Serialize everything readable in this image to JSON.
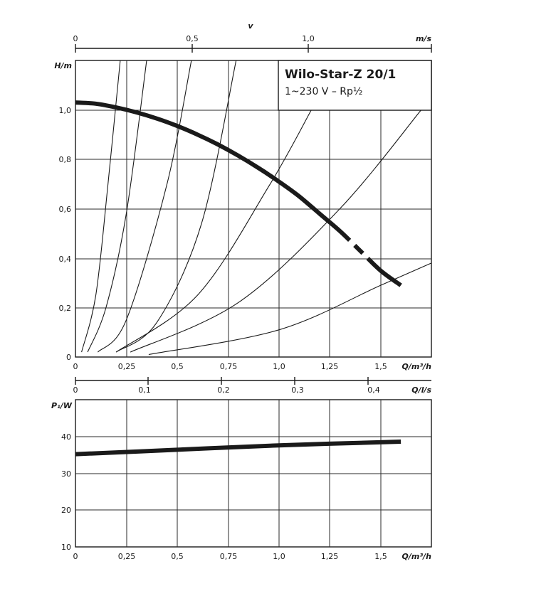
{
  "chart_data": [
    {
      "type": "line",
      "title": "Wilo-Star-Z 20/1",
      "subtitle": "1~230 V – Rp½",
      "xlabel": "Q/m³/h",
      "ylabel": "H/m",
      "xlim": [
        0,
        1.75
      ],
      "ylim": [
        0,
        1.2
      ],
      "x_ticks": [
        "0",
        "0,25",
        "0,5",
        "0,75",
        "1,0",
        "1,25",
        "1,5"
      ],
      "x_tick_values": [
        0,
        0.25,
        0.5,
        0.75,
        1.0,
        1.25,
        1.5
      ],
      "y_ticks": [
        "0",
        "0,2",
        "0,4",
        "0,6",
        "0,8",
        "1,0"
      ],
      "y_tick_values": [
        0,
        0.2,
        0.4,
        0.6,
        0.8,
        1.0
      ],
      "top_axis": {
        "label": "v",
        "unit": "m/s",
        "ticks": [
          "0",
          "0,5",
          "1,0"
        ],
        "tick_values": [
          0,
          0.5,
          1.0
        ],
        "x_per_unit": 0.575
      },
      "q_ls_axis": {
        "unit": "Q/l/s",
        "ticks": [
          "0",
          "0,1",
          "0,2",
          "0,3",
          "0,4"
        ],
        "tick_values": [
          0,
          0.1,
          0.2,
          0.3,
          0.4
        ],
        "x_per_unit": 3.6
      },
      "grid": true,
      "series": [
        {
          "style": "thick",
          "x": [
            0,
            0.1,
            0.2,
            0.3,
            0.4,
            0.5,
            0.6,
            0.7,
            0.8,
            0.9,
            1.0,
            1.1,
            1.2,
            1.3,
            1.4,
            1.5,
            1.6
          ],
          "values": [
            1.03,
            1.025,
            1.01,
            0.99,
            0.965,
            0.935,
            0.9,
            0.86,
            0.815,
            0.765,
            0.71,
            0.65,
            0.58,
            0.51,
            0.43,
            0.35,
            0.29
          ]
        },
        {
          "style": "thin",
          "x": [
            0.03,
            0.1,
            0.16,
            0.22
          ],
          "values": [
            0.02,
            0.25,
            0.7,
            1.2
          ]
        },
        {
          "style": "thin",
          "x": [
            0.06,
            0.15,
            0.25,
            0.35
          ],
          "values": [
            0.02,
            0.2,
            0.58,
            1.2
          ]
        },
        {
          "style": "thin",
          "x": [
            0.11,
            0.25,
            0.45,
            0.57
          ],
          "values": [
            0.02,
            0.15,
            0.7,
            1.2
          ]
        },
        {
          "style": "thin",
          "x": [
            0.2,
            0.4,
            0.62,
            0.79
          ],
          "values": [
            0.02,
            0.14,
            0.54,
            1.2
          ]
        },
        {
          "style": "thin",
          "x": [
            0.2,
            0.6,
            0.95,
            1.16
          ],
          "values": [
            0.02,
            0.25,
            0.69,
            1.0
          ]
        },
        {
          "style": "thin",
          "x": [
            0.27,
            0.8,
            1.3,
            1.7
          ],
          "values": [
            0.02,
            0.22,
            0.6,
            1.0
          ]
        },
        {
          "style": "thin",
          "x": [
            0.36,
            1.0,
            1.5,
            1.75
          ],
          "values": [
            0.01,
            0.11,
            0.29,
            0.38
          ]
        }
      ]
    },
    {
      "type": "line",
      "xlabel": "Q/m³/h",
      "ylabel": "P₁/W",
      "xlim": [
        0,
        1.75
      ],
      "ylim": [
        10,
        50
      ],
      "x_ticks": [
        "0",
        "0,25",
        "0,5",
        "0,75",
        "1,0",
        "1,25",
        "1,5"
      ],
      "x_tick_values": [
        0,
        0.25,
        0.5,
        0.75,
        1.0,
        1.25,
        1.5
      ],
      "y_ticks": [
        "10",
        "20",
        "30",
        "40"
      ],
      "y_tick_values": [
        10,
        20,
        30,
        40
      ],
      "grid": true,
      "series": [
        {
          "style": "thick",
          "x": [
            0,
            0.5,
            1.0,
            1.6
          ],
          "values": [
            35.2,
            36.4,
            37.6,
            38.6
          ]
        }
      ]
    }
  ]
}
